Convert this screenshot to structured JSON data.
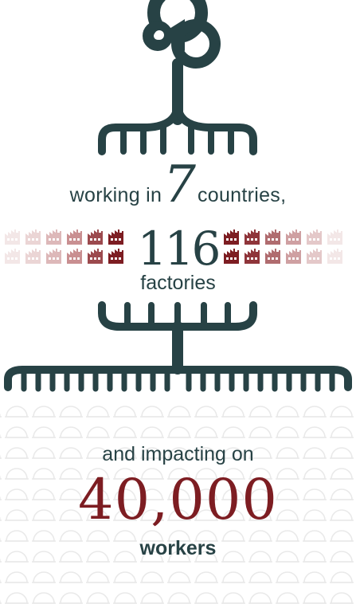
{
  "colors": {
    "dark": "#274245",
    "red": "#7d1d22",
    "pattern": "#ececec"
  },
  "icons": {
    "logo": "trefoil-logo-icon",
    "factory": "factory-icon",
    "pattern": "half-circle-pattern"
  },
  "intro": {
    "prefix": "working in",
    "countries_count": "7",
    "suffix": "countries,"
  },
  "factories": {
    "count": "116",
    "label": "factories"
  },
  "impact": {
    "label": "and impacting on",
    "count": "40,000",
    "unit": "workers"
  }
}
